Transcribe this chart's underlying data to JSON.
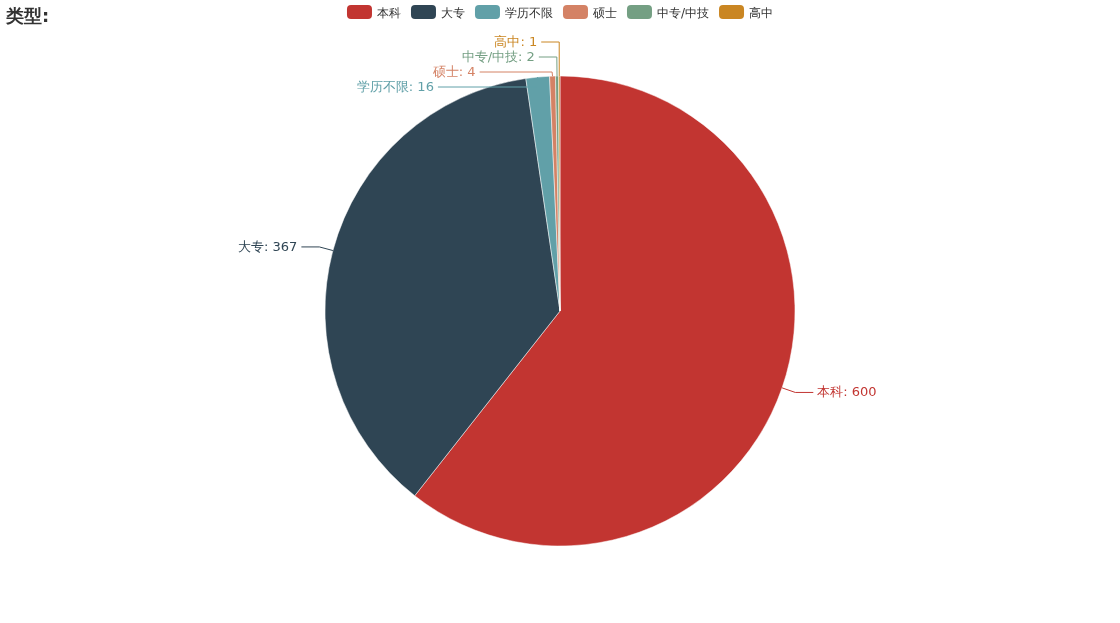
{
  "chart_data": {
    "type": "pie",
    "title": "类型:",
    "categories": [
      "本科",
      "大专",
      "学历不限",
      "硕士",
      "中专/中技",
      "高中"
    ],
    "values": [
      600,
      367,
      16,
      4,
      2,
      1
    ],
    "colors": [
      "#c23531",
      "#2f4554",
      "#61a0a8",
      "#d48265",
      "#749f83",
      "#ca8622"
    ],
    "value_labels": [
      "本科: 600",
      "大专: 367",
      "学历不限: 16",
      "硕士: 4",
      "中专/中技: 2",
      "高中: 1"
    ],
    "legend": "top"
  }
}
